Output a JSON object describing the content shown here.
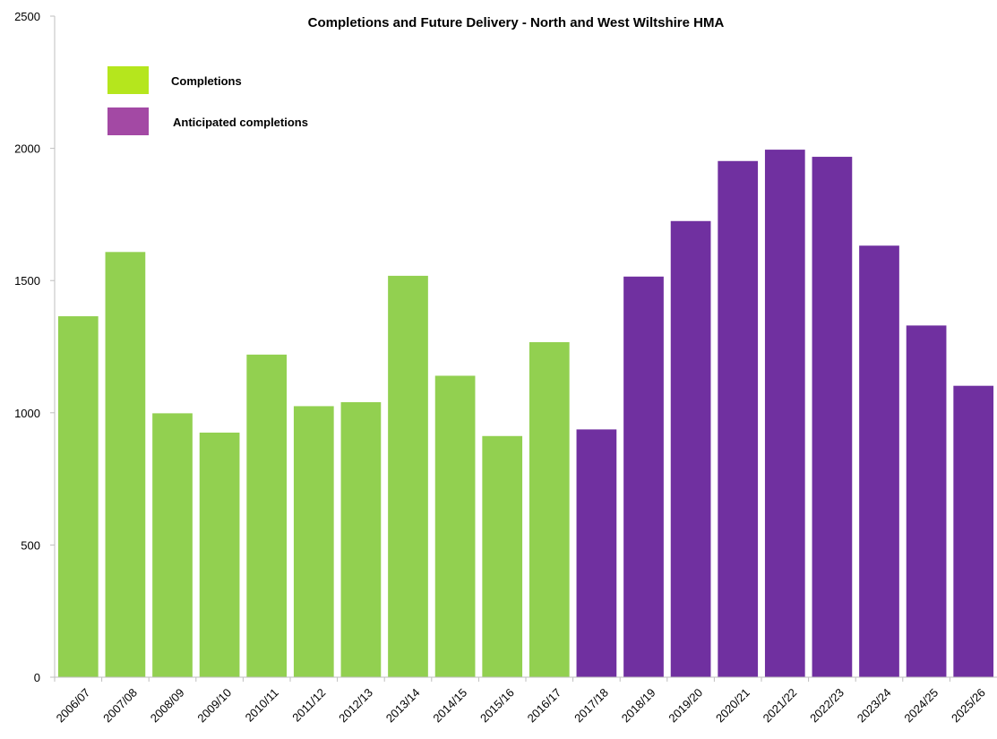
{
  "chart_data": {
    "type": "bar",
    "title": "Completions and Future Delivery - North and West Wiltshire HMA",
    "xlabel": "",
    "ylabel": "",
    "ylim": [
      0,
      2500
    ],
    "yticks": [
      0,
      500,
      1000,
      1500,
      2000,
      2500
    ],
    "grid": false,
    "legend_position": "top-left",
    "categories": [
      "2006/07",
      "2007/08",
      "2008/09",
      "2009/10",
      "2010/11",
      "2011/12",
      "2012/13",
      "2013/14",
      "2014/15",
      "2015/16",
      "2016/17",
      "2017/18",
      "2018/19",
      "2019/20",
      "2020/21",
      "2021/22",
      "2022/23",
      "2023/24",
      "2024/25",
      "2025/26"
    ],
    "series": [
      {
        "name": "Completions",
        "color": "#92d050",
        "legend_color": "#b5e61d",
        "values": [
          1365,
          1608,
          998,
          925,
          1220,
          1025,
          1040,
          1518,
          1140,
          912,
          1267,
          null,
          null,
          null,
          null,
          null,
          null,
          null,
          null,
          null
        ]
      },
      {
        "name": "Anticipated completions",
        "color": "#7030a0",
        "legend_color": "#a349a4",
        "values": [
          null,
          null,
          null,
          null,
          null,
          null,
          null,
          null,
          null,
          null,
          null,
          937,
          1515,
          1725,
          1952,
          1995,
          1968,
          1632,
          1330,
          1102
        ]
      }
    ]
  }
}
